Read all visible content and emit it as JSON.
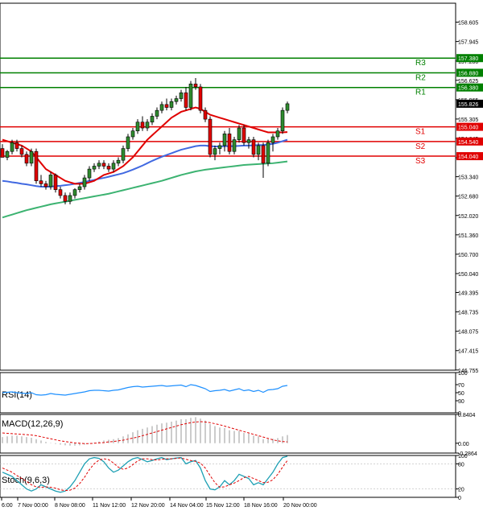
{
  "chart_data": {
    "type": "candlestick",
    "main": {
      "y_range": [
        146.75,
        159.25
      ],
      "y_ticks": [
        "158.605",
        "157.945",
        "157.280",
        "156.625",
        "155.965",
        "155.305",
        "154.645",
        "153.985",
        "153.340",
        "152.680",
        "152.020",
        "151.360",
        "150.700",
        "150.040",
        "149.395",
        "148.735",
        "148.075",
        "147.415",
        "146.755"
      ],
      "price_label": "155.826",
      "levels": [
        {
          "name": "R3",
          "value": "157.380",
          "color": "#008000"
        },
        {
          "name": "R2",
          "value": "156.880",
          "color": "#008000"
        },
        {
          "name": "R1",
          "value": "156.380",
          "color": "#008000"
        },
        {
          "name": "S1",
          "value": "155.040",
          "color": "#e00000"
        },
        {
          "name": "S2",
          "value": "154.540",
          "color": "#e00000"
        },
        {
          "name": "S3",
          "value": "154.040",
          "color": "#e00000"
        }
      ],
      "candles": [
        [
          154.3,
          154.45,
          154.05,
          154.0
        ],
        [
          154.0,
          154.25,
          153.9,
          154.2
        ],
        [
          154.2,
          154.6,
          154.1,
          154.5
        ],
        [
          154.5,
          154.6,
          154.2,
          154.3
        ],
        [
          154.3,
          154.4,
          154.0,
          154.1
        ],
        [
          154.1,
          154.2,
          153.7,
          153.8
        ],
        [
          153.8,
          154.3,
          153.7,
          154.2
        ],
        [
          154.2,
          154.3,
          153.1,
          153.2
        ],
        [
          153.2,
          153.4,
          153.0,
          153.1
        ],
        [
          153.1,
          153.2,
          152.9,
          153.0
        ],
        [
          153.0,
          153.5,
          152.9,
          153.4
        ],
        [
          153.4,
          153.45,
          152.8,
          152.9
        ],
        [
          152.9,
          153.0,
          152.6,
          152.7
        ],
        [
          152.7,
          152.8,
          152.4,
          152.5
        ],
        [
          152.5,
          152.8,
          152.4,
          152.7
        ],
        [
          152.7,
          152.95,
          152.6,
          152.9
        ],
        [
          152.9,
          153.1,
          152.8,
          153.0
        ],
        [
          153.0,
          153.4,
          152.9,
          153.3
        ],
        [
          153.3,
          153.7,
          153.2,
          153.6
        ],
        [
          153.6,
          153.8,
          153.5,
          153.7
        ],
        [
          153.7,
          153.9,
          153.6,
          153.8
        ],
        [
          153.8,
          153.9,
          153.6,
          153.7
        ],
        [
          153.7,
          153.8,
          153.5,
          153.6
        ],
        [
          153.6,
          153.9,
          153.5,
          153.8
        ],
        [
          153.8,
          154.0,
          153.7,
          153.9
        ],
        [
          153.9,
          154.4,
          153.8,
          154.3
        ],
        [
          154.3,
          154.8,
          154.2,
          154.7
        ],
        [
          154.7,
          155.0,
          154.6,
          154.9
        ],
        [
          154.9,
          155.3,
          154.8,
          155.2
        ],
        [
          155.2,
          155.4,
          154.9,
          155.0
        ],
        [
          155.0,
          155.3,
          154.9,
          155.2
        ],
        [
          155.2,
          155.5,
          155.1,
          155.4
        ],
        [
          155.4,
          155.7,
          155.3,
          155.6
        ],
        [
          155.6,
          155.9,
          155.5,
          155.8
        ],
        [
          155.8,
          156.0,
          155.6,
          155.7
        ],
        [
          155.7,
          156.0,
          155.6,
          155.9
        ],
        [
          155.9,
          156.1,
          155.8,
          156.0
        ],
        [
          156.0,
          156.3,
          155.9,
          156.2
        ],
        [
          156.2,
          156.4,
          155.6,
          155.7
        ],
        [
          155.7,
          156.6,
          155.6,
          156.5
        ],
        [
          156.5,
          156.7,
          156.3,
          156.4
        ],
        [
          156.4,
          156.5,
          155.5,
          155.6
        ],
        [
          155.6,
          155.7,
          155.2,
          155.3
        ],
        [
          155.3,
          155.4,
          154.0,
          154.1
        ],
        [
          154.1,
          154.4,
          153.9,
          154.3
        ],
        [
          154.3,
          154.5,
          154.1,
          154.4
        ],
        [
          154.4,
          154.9,
          154.2,
          154.8
        ],
        [
          154.8,
          155.0,
          154.1,
          154.2
        ],
        [
          154.2,
          154.7,
          154.1,
          154.6
        ],
        [
          154.6,
          155.1,
          154.5,
          155.0
        ],
        [
          155.0,
          155.1,
          154.4,
          154.5
        ],
        [
          154.5,
          154.7,
          154.3,
          154.6
        ],
        [
          154.6,
          154.7,
          154.0,
          154.1
        ],
        [
          154.1,
          154.5,
          153.9,
          154.4
        ],
        [
          154.4,
          154.5,
          153.3,
          153.8
        ],
        [
          153.8,
          154.6,
          153.7,
          154.5
        ],
        [
          154.5,
          154.8,
          154.2,
          154.7
        ],
        [
          154.7,
          155.0,
          154.6,
          154.9
        ],
        [
          154.9,
          155.7,
          154.8,
          155.6
        ],
        [
          155.6,
          155.9,
          155.5,
          155.826
        ]
      ],
      "ma_fast": [
        154.6,
        154.55,
        154.5,
        154.45,
        154.4,
        154.3,
        154.2,
        154.0,
        153.8,
        153.6,
        153.5,
        153.4,
        153.3,
        153.2,
        153.15,
        153.1,
        153.1,
        153.1,
        153.15,
        153.2,
        153.3,
        153.4,
        153.45,
        153.5,
        153.6,
        153.7,
        153.85,
        154.0,
        154.2,
        154.4,
        154.6,
        154.75,
        154.9,
        155.05,
        155.2,
        155.35,
        155.45,
        155.55,
        155.6,
        155.65,
        155.7,
        155.65,
        155.55,
        155.45,
        155.4,
        155.35,
        155.3,
        155.25,
        155.2,
        155.15,
        155.1,
        155.05,
        155.0,
        154.95,
        154.9,
        154.85,
        154.85,
        154.85,
        154.85,
        154.86
      ],
      "ma_mid": [
        153.2,
        153.18,
        153.15,
        153.13,
        153.1,
        153.08,
        153.05,
        153.02,
        153.0,
        153.0,
        153.0,
        153.02,
        153.03,
        153.05,
        153.07,
        153.1,
        153.13,
        153.16,
        153.2,
        153.23,
        153.27,
        153.3,
        153.34,
        153.38,
        153.42,
        153.46,
        153.52,
        153.58,
        153.65,
        153.72,
        153.8,
        153.88,
        153.95,
        154.02,
        154.08,
        154.14,
        154.2,
        154.26,
        154.3,
        154.34,
        154.38,
        154.4,
        154.4,
        154.38,
        154.37,
        154.37,
        154.38,
        154.38,
        154.38,
        154.39,
        154.4,
        154.4,
        154.41,
        154.42,
        154.42,
        154.44,
        154.46,
        154.5,
        154.55,
        154.6
      ],
      "ma_slow": [
        151.95,
        152.0,
        152.05,
        152.1,
        152.15,
        152.2,
        152.24,
        152.28,
        152.32,
        152.36,
        152.4,
        152.43,
        152.46,
        152.49,
        152.52,
        152.55,
        152.58,
        152.61,
        152.64,
        152.67,
        152.7,
        152.73,
        152.76,
        152.8,
        152.84,
        152.88,
        152.92,
        152.96,
        153.0,
        153.04,
        153.08,
        153.12,
        153.16,
        153.2,
        153.25,
        153.3,
        153.35,
        153.4,
        153.44,
        153.48,
        153.52,
        153.55,
        153.58,
        153.6,
        153.62,
        153.64,
        153.66,
        153.68,
        153.7,
        153.72,
        153.74,
        153.75,
        153.76,
        153.77,
        153.78,
        153.79,
        153.8,
        153.82,
        153.84,
        153.86
      ]
    },
    "x_labels": [
      "6:00",
      "7 Nov 00:00",
      "8 Nov 08:00",
      "11 Nov 12:00",
      "12 Nov 20:00",
      "14 Nov 04:00",
      "15 Nov 12:00",
      "18 Nov 16:00",
      "20 Nov 00:00"
    ],
    "rsi": {
      "title": "RSI(14)",
      "y_ticks": [
        "100",
        "70",
        "50",
        "30",
        "0"
      ],
      "values": [
        50,
        51,
        52,
        50,
        49,
        48,
        50,
        45,
        44,
        45,
        48,
        46,
        45,
        44,
        46,
        48,
        50,
        52,
        55,
        56,
        56,
        55,
        54,
        56,
        57,
        60,
        63,
        65,
        66,
        64,
        65,
        66,
        67,
        68,
        66,
        67,
        68,
        69,
        65,
        70,
        68,
        64,
        60,
        53,
        55,
        56,
        58,
        54,
        57,
        60,
        55,
        57,
        53,
        56,
        51,
        57,
        58,
        60,
        66,
        68
      ]
    },
    "macd": {
      "title": "MACD(12,26,9)",
      "y_ticks": [
        "0.8404",
        "0.00",
        "-0.2864"
      ],
      "hist": [
        0.18,
        0.2,
        0.22,
        0.22,
        0.2,
        0.18,
        0.16,
        0.12,
        0.08,
        0.04,
        0.01,
        -0.02,
        -0.04,
        -0.06,
        -0.07,
        -0.07,
        -0.06,
        -0.04,
        -0.01,
        0.02,
        0.05,
        0.08,
        0.1,
        0.12,
        0.15,
        0.2,
        0.26,
        0.32,
        0.38,
        0.42,
        0.46,
        0.5,
        0.54,
        0.58,
        0.6,
        0.63,
        0.66,
        0.7,
        0.7,
        0.74,
        0.76,
        0.72,
        0.66,
        0.56,
        0.5,
        0.46,
        0.44,
        0.38,
        0.36,
        0.36,
        0.3,
        0.28,
        0.22,
        0.2,
        0.12,
        0.12,
        0.13,
        0.15,
        0.2,
        0.24
      ],
      "signal": [
        0.3,
        0.29,
        0.28,
        0.27,
        0.26,
        0.25,
        0.24,
        0.22,
        0.19,
        0.16,
        0.13,
        0.1,
        0.07,
        0.05,
        0.03,
        0.01,
        0.0,
        -0.01,
        -0.01,
        0.0,
        0.01,
        0.02,
        0.04,
        0.05,
        0.07,
        0.09,
        0.12,
        0.15,
        0.18,
        0.22,
        0.26,
        0.3,
        0.34,
        0.38,
        0.42,
        0.46,
        0.5,
        0.54,
        0.57,
        0.6,
        0.62,
        0.63,
        0.62,
        0.6,
        0.57,
        0.54,
        0.5,
        0.46,
        0.42,
        0.38,
        0.34,
        0.3,
        0.26,
        0.22,
        0.18,
        0.14,
        0.1,
        0.07,
        0.05,
        0.04
      ]
    },
    "stoch": {
      "title": "Stoch(9,6,3)",
      "y_ticks": [
        "100",
        "80",
        "20",
        "0"
      ],
      "k": [
        60,
        55,
        50,
        40,
        30,
        20,
        15,
        20,
        30,
        25,
        20,
        15,
        12,
        15,
        25,
        40,
        60,
        80,
        92,
        95,
        93,
        85,
        70,
        60,
        65,
        75,
        85,
        92,
        95,
        90,
        85,
        88,
        92,
        95,
        90,
        92,
        94,
        95,
        80,
        85,
        88,
        70,
        40,
        20,
        18,
        25,
        40,
        30,
        40,
        55,
        50,
        45,
        30,
        35,
        30,
        45,
        60,
        80,
        95,
        98
      ],
      "d": [
        70,
        65,
        60,
        52,
        45,
        38,
        30,
        25,
        24,
        25,
        24,
        22,
        18,
        16,
        17,
        22,
        33,
        48,
        66,
        80,
        89,
        92,
        90,
        82,
        72,
        67,
        70,
        78,
        87,
        92,
        92,
        90,
        89,
        91,
        92,
        92,
        93,
        94,
        91,
        88,
        86,
        82,
        70,
        52,
        35,
        24,
        25,
        30,
        34,
        40,
        47,
        50,
        45,
        40,
        35,
        36,
        42,
        55,
        72,
        88
      ]
    }
  }
}
